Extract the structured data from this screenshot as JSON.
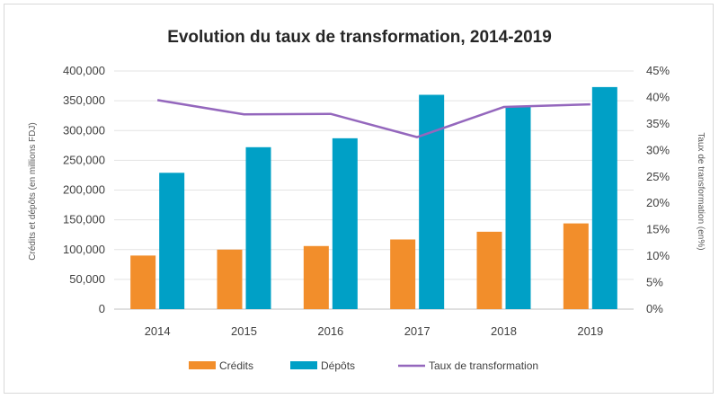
{
  "chart_data": {
    "type": "bar",
    "title": "Evolution du taux de transformation, 2014-2019",
    "categories": [
      "2014",
      "2015",
      "2016",
      "2017",
      "2018",
      "2019"
    ],
    "series": [
      {
        "name": "Crédits",
        "kind": "bar",
        "axis": "left",
        "color": "#f28e2b",
        "values": [
          90000,
          100000,
          106000,
          117000,
          130000,
          144000
        ]
      },
      {
        "name": "Dépôts",
        "kind": "bar",
        "axis": "left",
        "color": "#00a0c6",
        "values": [
          229000,
          272000,
          287000,
          360000,
          340000,
          373000
        ]
      },
      {
        "name": "Taux de transformation",
        "kind": "line",
        "axis": "right",
        "color": "#9467bd",
        "values": [
          39.5,
          36.8,
          36.9,
          32.5,
          38.2,
          38.7
        ]
      }
    ],
    "ylabel": "Crédits et dépôts (en millions FDJ)",
    "y2label": "Taux de transformation (en%)",
    "ylim": [
      0,
      400000
    ],
    "y2lim": [
      0,
      45
    ],
    "yticks": [
      "0",
      "50,000",
      "100,000",
      "150,000",
      "200,000",
      "250,000",
      "300,000",
      "350,000",
      "400,000"
    ],
    "y2ticks": [
      "0%",
      "5%",
      "10%",
      "15%",
      "20%",
      "25%",
      "30%",
      "35%",
      "40%",
      "45%"
    ],
    "legend_position": "bottom",
    "grid": true
  }
}
